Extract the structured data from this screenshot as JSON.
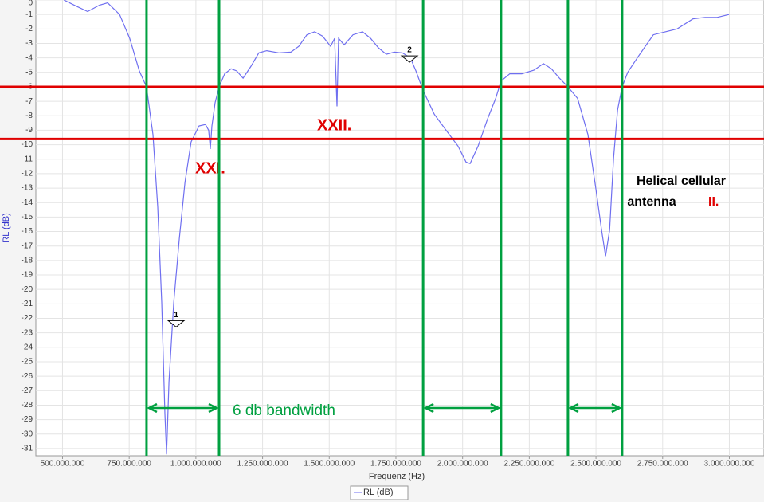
{
  "chart_data": {
    "type": "line",
    "y_label": "RL (dB)",
    "x_label": "Frequenz (Hz)",
    "xlim": [
      400000000,
      3130000000
    ],
    "ylim": [
      -31.5,
      0
    ],
    "xticks": [
      {
        "value": 500000000,
        "label": "500.000.000"
      },
      {
        "value": 750000000,
        "label": "750.000.000"
      },
      {
        "value": 1000000000,
        "label": "1.000.000.000"
      },
      {
        "value": 1250000000,
        "label": "1.250.000.000"
      },
      {
        "value": 1500000000,
        "label": "1.500.000.000"
      },
      {
        "value": 1750000000,
        "label": "1.750.000.000"
      },
      {
        "value": 2000000000,
        "label": "2.000.000.000"
      },
      {
        "value": 2250000000,
        "label": "2.250.000.000"
      },
      {
        "value": 2500000000,
        "label": "2.500.000.000"
      },
      {
        "value": 2750000000,
        "label": "2.750.000.000"
      },
      {
        "value": 3000000000,
        "label": "3.000.000.000"
      }
    ],
    "yticks": [
      0,
      -1,
      -2,
      -3,
      -4,
      -5,
      -6,
      -7,
      -8,
      -9,
      -10,
      -11,
      -12,
      -13,
      -14,
      -15,
      -16,
      -17,
      -18,
      -19,
      -20,
      -21,
      -22,
      -23,
      -24,
      -25,
      -26,
      -27,
      -28,
      -29,
      -30,
      -31
    ],
    "grid": true,
    "series": [
      {
        "name": "RL (dB)",
        "color": "#6f6ff0",
        "x": [
          505000000,
          549000000,
          594000000,
          639000000,
          669000000,
          714000000,
          752000000,
          788000000,
          815000000,
          839000000,
          857000000,
          872000000,
          884000000,
          890000000,
          899000000,
          917000000,
          938000000,
          959000000,
          982000000,
          1012000000,
          1036000000,
          1048000000,
          1054000000,
          1060000000,
          1072000000,
          1087000000,
          1108000000,
          1132000000,
          1153000000,
          1177000000,
          1206000000,
          1236000000,
          1266000000,
          1311000000,
          1356000000,
          1386000000,
          1416000000,
          1445000000,
          1475000000,
          1505000000,
          1520000000,
          1529000000,
          1535000000,
          1556000000,
          1589000000,
          1625000000,
          1655000000,
          1684000000,
          1714000000,
          1744000000,
          1774000000,
          1804000000,
          1825000000,
          1852000000,
          1894000000,
          1938000000,
          1983000000,
          2013000000,
          2028000000,
          2058000000,
          2094000000,
          2124000000,
          2144000000,
          2177000000,
          2222000000,
          2267000000,
          2303000000,
          2333000000,
          2363000000,
          2395000000,
          2431000000,
          2470000000,
          2500000000,
          2521000000,
          2536000000,
          2551000000,
          2566000000,
          2581000000,
          2598000000,
          2619000000,
          2655000000,
          2685000000,
          2715000000,
          2760000000,
          2804000000,
          2864000000,
          2909000000,
          2954000000,
          2999000000
        ],
        "values": [
          0,
          -0.4,
          -0.8,
          -0.35,
          -0.2,
          -1,
          -2.65,
          -4.9,
          -6,
          -9.3,
          -14.3,
          -20.9,
          -28.6,
          -31.4,
          -26.4,
          -20.9,
          -16.5,
          -12.6,
          -9.8,
          -8.7,
          -8.6,
          -9,
          -10.3,
          -8.7,
          -7.1,
          -6,
          -5.1,
          -4.75,
          -4.9,
          -5.4,
          -4.6,
          -3.65,
          -3.5,
          -3.65,
          -3.6,
          -3.2,
          -2.4,
          -2.2,
          -2.5,
          -3.2,
          -2.65,
          -7.35,
          -2.65,
          -3.1,
          -2.4,
          -2.2,
          -2.65,
          -3.3,
          -3.75,
          -3.6,
          -3.65,
          -4,
          -4.9,
          -6.25,
          -7.9,
          -9,
          -10.1,
          -11.2,
          -11.3,
          -10.1,
          -8.2,
          -6.8,
          -5.6,
          -5.1,
          -5.1,
          -4.85,
          -4.4,
          -4.75,
          -5.4,
          -6,
          -6.8,
          -9.3,
          -13.1,
          -15.9,
          -17.7,
          -15.9,
          -10.9,
          -7.6,
          -6,
          -5,
          -4,
          -3.2,
          -2.4,
          -2.2,
          -2,
          -1.3,
          -1.2,
          -1.2,
          -1
        ]
      }
    ],
    "hlines": [
      -6,
      -9.6
    ],
    "hline_color": "#e00000",
    "vlines": [
      815000000,
      1087000000,
      1852000000,
      2144000000,
      2395000000,
      2598000000
    ],
    "vline_color": "#00a040",
    "markers": [
      {
        "label": "1",
        "x": 926000000,
        "y": -22.6
      },
      {
        "label": "2",
        "x": 1801000000,
        "y": -4.3
      }
    ],
    "annotations": [
      "XXI.",
      "XXII.",
      "6 db bandwidth"
    ],
    "note": [
      "Helical cellular",
      "antenna",
      "II."
    ]
  }
}
